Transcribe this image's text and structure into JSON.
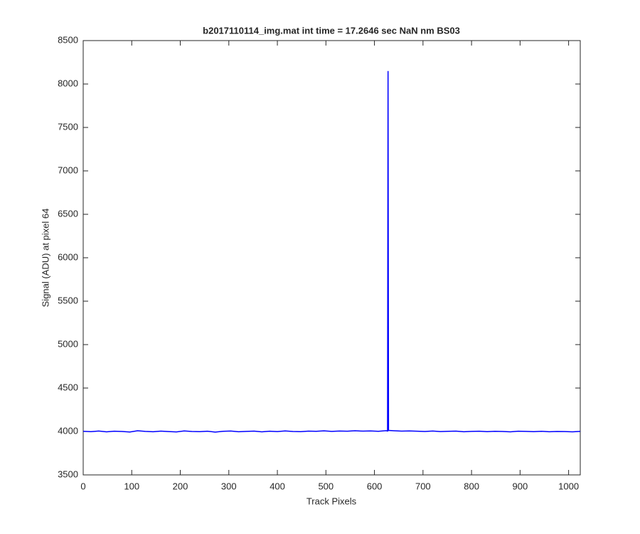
{
  "chart_data": {
    "type": "line",
    "title": "b2017110114_img.mat int time = 17.2646 sec  NaN nm BS03",
    "x_label": "Track Pixels",
    "y_label": "Signal (ADU) at pixel 64",
    "x": [
      0,
      16,
      32,
      48,
      64,
      80,
      96,
      112,
      128,
      144,
      160,
      176,
      192,
      208,
      224,
      240,
      256,
      272,
      288,
      304,
      320,
      336,
      352,
      368,
      384,
      400,
      416,
      432,
      448,
      464,
      480,
      496,
      512,
      528,
      544,
      560,
      576,
      592,
      608,
      624,
      627,
      628,
      629,
      640,
      656,
      672,
      688,
      704,
      720,
      736,
      752,
      768,
      784,
      800,
      816,
      832,
      848,
      864,
      880,
      896,
      912,
      928,
      944,
      960,
      976,
      992,
      1008,
      1024
    ],
    "series": [
      {
        "name": "Signal",
        "color": "#0000ff",
        "values": [
          4002,
          3998,
          4005,
          3996,
          4003,
          4000,
          3994,
          4008,
          4001,
          3997,
          4004,
          3999,
          3995,
          4006,
          4000,
          3998,
          4003,
          3993,
          4002,
          4005,
          3997,
          4001,
          4004,
          3996,
          4003,
          3999,
          4006,
          4000,
          3998,
          4004,
          4002,
          4007,
          4001,
          4005,
          4003,
          4008,
          4004,
          4006,
          4002,
          4009,
          4005,
          8150,
          4012,
          4008,
          4004,
          4006,
          4003,
          4000,
          4005,
          3999,
          4002,
          4004,
          3997,
          4001,
          4003,
          3998,
          4002,
          4000,
          3996,
          4003,
          4001,
          3998,
          4002,
          3997,
          4000,
          3999,
          3996,
          4001
        ]
      }
    ],
    "xlim": [
      0,
      1024
    ],
    "xticks": [
      0,
      100,
      200,
      300,
      400,
      500,
      600,
      700,
      800,
      900,
      1000
    ],
    "ylim": [
      3500,
      8500
    ],
    "yticks": [
      3500,
      4000,
      4500,
      5000,
      5500,
      6000,
      6500,
      7000,
      7500,
      8000,
      8500
    ],
    "grid": false
  }
}
